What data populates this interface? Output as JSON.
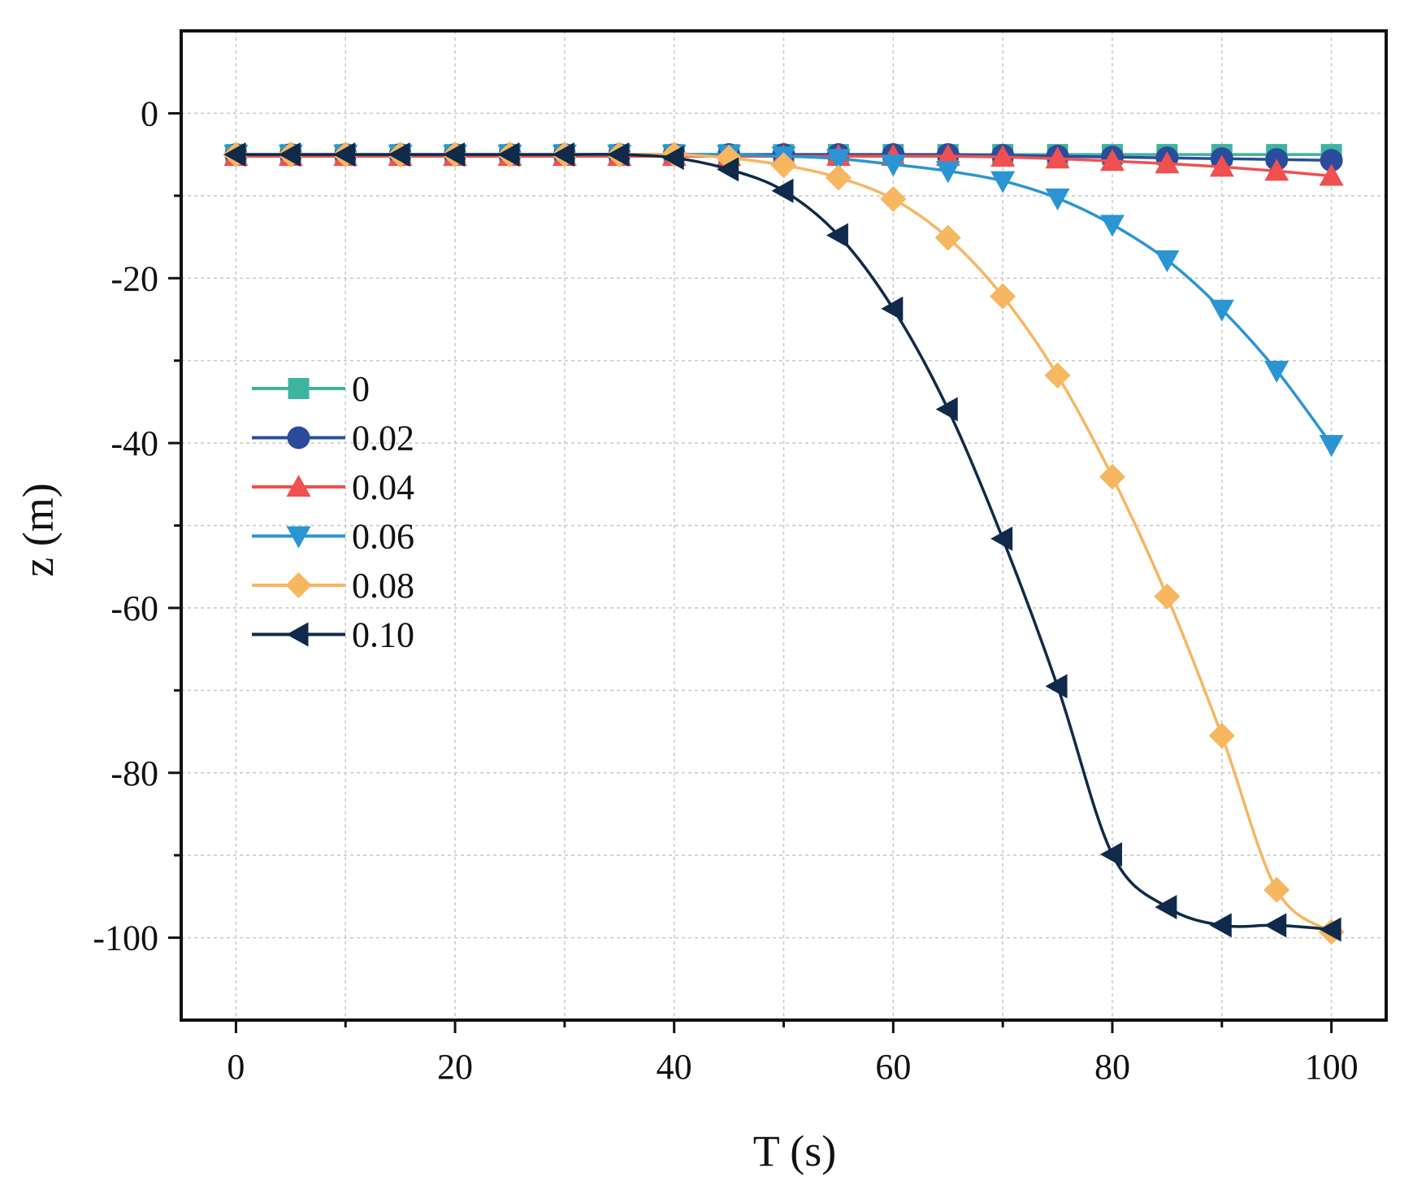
{
  "chart_data": {
    "type": "line",
    "title": "",
    "xlabel": "T (s)",
    "ylabel": "z (m)",
    "xlim": [
      -5,
      105
    ],
    "ylim": [
      -110,
      10
    ],
    "xticks": [
      0,
      20,
      40,
      60,
      80,
      100
    ],
    "yticks": [
      0,
      -20,
      -40,
      -60,
      -80,
      -100
    ],
    "x_minor": [
      10,
      30,
      50,
      70,
      90
    ],
    "y_minor": [
      -10,
      -30,
      -50,
      -70,
      -90
    ],
    "grid": true,
    "legend_position": "middle-left",
    "x": [
      0,
      5,
      10,
      15,
      20,
      25,
      30,
      35,
      40,
      45,
      50,
      55,
      60,
      65,
      70,
      75,
      80,
      85,
      90,
      95,
      100
    ],
    "series": [
      {
        "name": "0",
        "color": "#3cb4a0",
        "marker": "square",
        "values": [
          -5,
          -5,
          -5,
          -5,
          -5,
          -5,
          -5,
          -5,
          -5,
          -5,
          -5,
          -5,
          -5,
          -5,
          -5,
          -5,
          -5,
          -5,
          -5,
          -5,
          -5
        ]
      },
      {
        "name": "0.02",
        "color": "#2a4c9b",
        "marker": "circle",
        "values": [
          -5,
          -5,
          -5,
          -5,
          -5,
          -5,
          -5,
          -5,
          -5,
          -5,
          -5,
          -5,
          -5,
          -5,
          -5.1,
          -5.2,
          -5.3,
          -5.4,
          -5.5,
          -5.6,
          -5.7
        ]
      },
      {
        "name": "0.04",
        "color": "#f05050",
        "marker": "triangle-up",
        "values": [
          -5.2,
          -5.2,
          -5.2,
          -5.2,
          -5.2,
          -5.2,
          -5.2,
          -5.2,
          -5.2,
          -5.2,
          -5.2,
          -5.2,
          -5.2,
          -5.2,
          -5.3,
          -5.5,
          -5.8,
          -6.1,
          -6.5,
          -7,
          -7.6
        ]
      },
      {
        "name": "0.06",
        "color": "#2a95d2",
        "marker": "triangle-down",
        "values": [
          -5,
          -5,
          -5,
          -5,
          -5,
          -5,
          -5,
          -5,
          -5,
          -5,
          -5.2,
          -5.5,
          -6.2,
          -7,
          -8.2,
          -10.3,
          -13.5,
          -17.8,
          -23.8,
          -31.2,
          -40.2
        ]
      },
      {
        "name": "0.08",
        "color": "#f7b660",
        "marker": "diamond",
        "values": [
          -5,
          -5,
          -5,
          -5,
          -5,
          -5,
          -5,
          -5,
          -5,
          -5.4,
          -6.3,
          -7.8,
          -10.4,
          -15.1,
          -22.2,
          -31.8,
          -44.1,
          -58.6,
          -75.5,
          -94.2,
          -99.3
        ]
      },
      {
        "name": "0.10",
        "color": "#0f2a4a",
        "marker": "triangle-left",
        "values": [
          -5,
          -5,
          -5,
          -5,
          -5,
          -5,
          -5,
          -5,
          -5.4,
          -6.8,
          -9.4,
          -14.8,
          -23.7,
          -35.9,
          -51.6,
          -69.5,
          -89.9,
          -96.3,
          -98.5,
          -98.5,
          -99
        ]
      }
    ]
  }
}
